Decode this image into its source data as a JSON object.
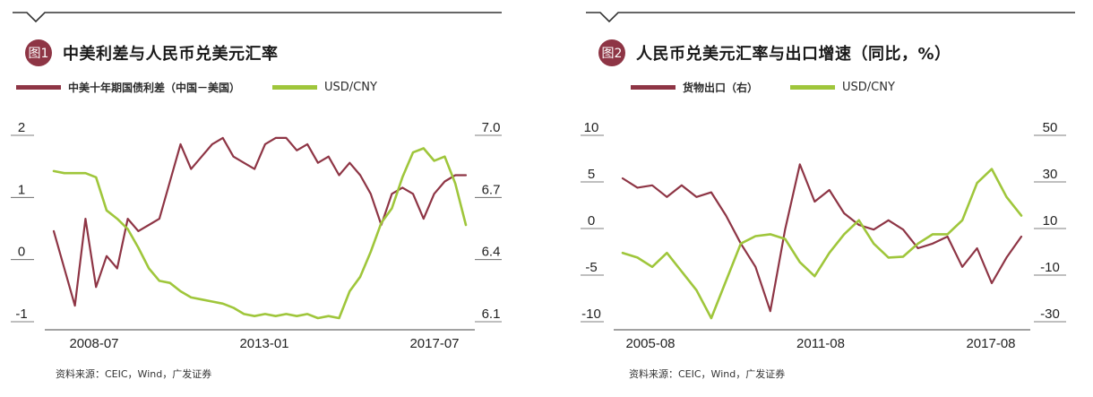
{
  "charts": [
    {
      "badge": "图1",
      "title": "中美利差与人民币兑美元汇率",
      "legend": [
        {
          "label": "中美十年期国债利差（中国－美国）",
          "color": "#8e3545"
        },
        {
          "label": "USD/CNY",
          "color": "#9fc63b"
        }
      ],
      "source": "资料来源：CEIC，Wind，广发证券"
    },
    {
      "badge": "图2",
      "title": "人民币兑美元汇率与出口增速（同比，%）",
      "legend": [
        {
          "label": "货物出口（右）",
          "color": "#8e3545"
        },
        {
          "label": "USD/CNY",
          "color": "#9fc63b"
        }
      ],
      "source": "资料来源：CEIC，Wind，广发证券"
    }
  ],
  "chart_data": [
    {
      "type": "line",
      "xticks": [
        "2008-07",
        "2013-01",
        "2017-07"
      ],
      "x": [
        "2007-12",
        "2008-03",
        "2008-06",
        "2008-09",
        "2008-12",
        "2009-03",
        "2009-06",
        "2009-09",
        "2009-12",
        "2010-03",
        "2010-06",
        "2010-09",
        "2010-12",
        "2011-03",
        "2011-06",
        "2011-09",
        "2011-12",
        "2012-03",
        "2012-06",
        "2012-09",
        "2012-12",
        "2013-03",
        "2013-06",
        "2013-09",
        "2013-12",
        "2014-03",
        "2014-06",
        "2014-09",
        "2014-12",
        "2015-03",
        "2015-06",
        "2015-09",
        "2015-12",
        "2016-03",
        "2016-06",
        "2016-09",
        "2016-12",
        "2017-03",
        "2017-06",
        "2017-08"
      ],
      "y_left": {
        "ticks": [
          "2",
          "1",
          "0",
          "-1"
        ],
        "range": [
          -1,
          2
        ]
      },
      "y_right": {
        "ticks": [
          "7.0",
          "6.7",
          "6.4",
          "6.1"
        ],
        "range": [
          6.1,
          7.0
        ]
      },
      "series": [
        {
          "name": "中美十年期国债利差（中国－美国）",
          "axis": "left",
          "color": "#8e3545",
          "values": [
            0.4,
            -0.2,
            -0.8,
            0.6,
            -0.5,
            0.0,
            -0.2,
            0.6,
            0.4,
            0.5,
            0.6,
            1.2,
            1.8,
            1.4,
            1.6,
            1.8,
            1.9,
            1.6,
            1.5,
            1.4,
            1.8,
            1.9,
            1.9,
            1.7,
            1.8,
            1.5,
            1.6,
            1.3,
            1.5,
            1.3,
            1.0,
            0.5,
            1.0,
            1.1,
            1.0,
            0.6,
            1.0,
            1.2,
            1.3,
            1.3
          ]
        },
        {
          "name": "USD/CNY",
          "axis": "right",
          "color": "#9fc63b",
          "values": [
            6.81,
            6.8,
            6.8,
            6.8,
            6.78,
            6.62,
            6.58,
            6.53,
            6.44,
            6.34,
            6.28,
            6.27,
            6.23,
            6.2,
            6.19,
            6.18,
            6.17,
            6.15,
            6.12,
            6.11,
            6.12,
            6.11,
            6.12,
            6.11,
            6.12,
            6.1,
            6.11,
            6.1,
            6.23,
            6.3,
            6.42,
            6.56,
            6.63,
            6.78,
            6.9,
            6.92,
            6.86,
            6.88,
            6.75,
            6.55
          ]
        }
      ]
    },
    {
      "type": "line",
      "xticks": [
        "2005-08",
        "2011-08",
        "2017-08"
      ],
      "x": [
        "2005-01",
        "2005-07",
        "2006-01",
        "2006-07",
        "2007-01",
        "2007-07",
        "2008-01",
        "2008-07",
        "2009-01",
        "2009-07",
        "2010-01",
        "2010-07",
        "2011-01",
        "2011-07",
        "2012-01",
        "2012-07",
        "2013-01",
        "2013-07",
        "2014-01",
        "2014-07",
        "2015-01",
        "2015-07",
        "2016-01",
        "2016-07",
        "2017-01",
        "2017-07",
        "2018-01",
        "2018-07"
      ],
      "y_left": {
        "ticks": [
          "10",
          "5",
          "0",
          "-5",
          "-10"
        ],
        "range": [
          -10,
          10
        ]
      },
      "y_right": {
        "ticks": [
          "50",
          "30",
          "10",
          "-10",
          "-30"
        ],
        "range": [
          -30,
          50
        ]
      },
      "series": [
        {
          "name": "货物出口（右）",
          "axis": "right",
          "color": "#8e3545",
          "values": [
            30,
            26,
            27,
            22,
            27,
            22,
            24,
            14,
            2,
            -8,
            -27,
            8,
            36,
            20,
            25,
            15,
            10,
            8,
            12,
            8,
            0,
            2,
            5,
            -8,
            0,
            -15,
            -4,
            5
          ]
        },
        {
          "name": "USD/CNY",
          "axis": "left",
          "color": "#9fc63b",
          "values": [
            -3,
            -3.5,
            -4.5,
            -3,
            -5,
            -7,
            -10,
            -6,
            -2,
            -1.2,
            -1,
            -1.5,
            -4,
            -5.5,
            -3,
            -1,
            0.5,
            -2,
            -3.5,
            -3.4,
            -2,
            -1,
            -1,
            0.5,
            4.5,
            6,
            3,
            1
          ]
        }
      ]
    }
  ]
}
